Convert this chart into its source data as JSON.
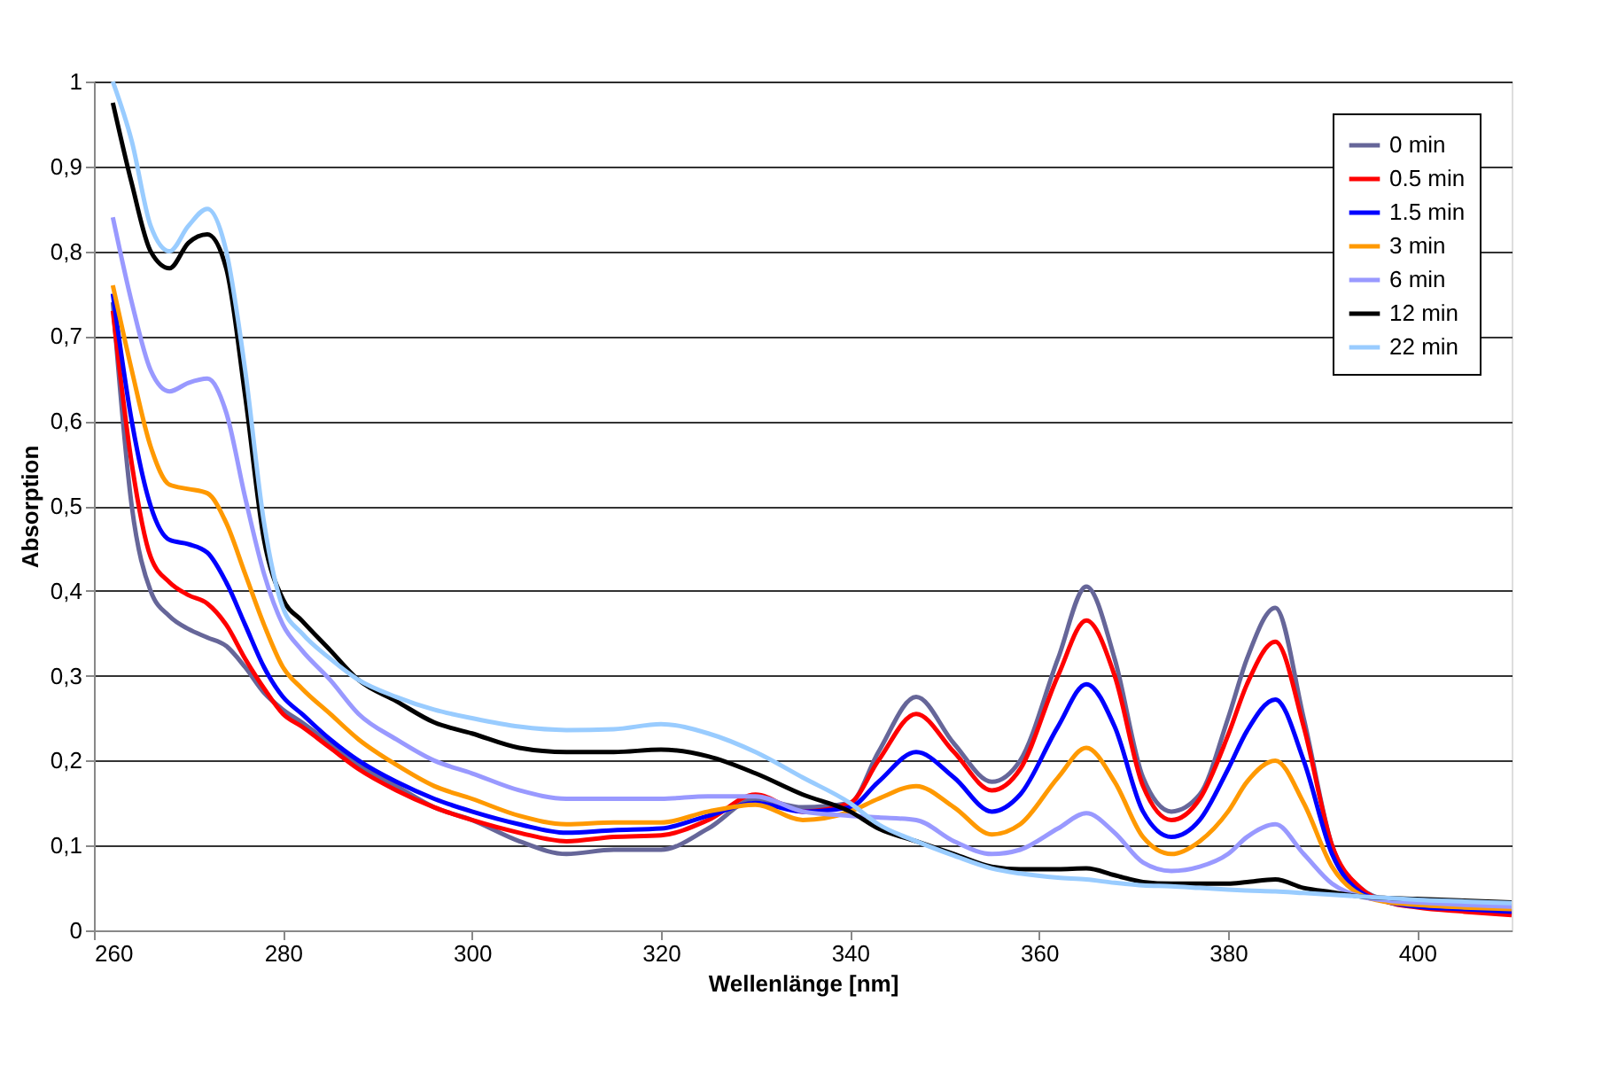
{
  "chart_data": {
    "type": "line",
    "xlabel": "Wellenlänge [nm]",
    "ylabel": "Absorption",
    "xlim": [
      260,
      410
    ],
    "xticks": [
      260,
      280,
      300,
      320,
      340,
      360,
      380,
      400
    ],
    "ylim": [
      0,
      1
    ],
    "yticks": [
      0,
      {
        "value": 0.1,
        "label": "0,1"
      },
      {
        "value": 0.2,
        "label": "0,2"
      },
      {
        "value": 0.3,
        "label": "0,3"
      },
      {
        "value": 0.4,
        "label": "0,4"
      },
      {
        "value": 0.5,
        "label": "0,5"
      },
      {
        "value": 0.6,
        "label": "0,6"
      },
      {
        "value": 0.7,
        "label": "0,7"
      },
      {
        "value": 0.8,
        "label": "0,8"
      },
      {
        "value": 0.9,
        "label": "0,9"
      },
      1
    ],
    "grid": "y",
    "legend": "top right",
    "marker": "none",
    "line_style": "solid",
    "x": [
      262,
      264,
      266,
      268,
      270,
      272,
      274,
      276,
      278,
      280,
      282,
      285,
      288,
      292,
      296,
      300,
      305,
      310,
      315,
      320,
      325,
      330,
      335,
      340,
      343,
      347,
      351,
      355,
      358,
      362,
      365,
      368,
      371,
      374,
      377,
      380,
      382,
      385,
      388,
      391,
      394,
      397,
      400,
      405,
      410
    ],
    "series": [
      {
        "name": "0 min",
        "color": "#666699",
        "values": [
          0.74,
          0.5,
          0.4,
          0.37,
          0.355,
          0.345,
          0.335,
          0.31,
          0.28,
          0.26,
          0.245,
          0.22,
          0.195,
          0.17,
          0.145,
          0.13,
          0.105,
          0.09,
          0.095,
          0.095,
          0.12,
          0.155,
          0.145,
          0.15,
          0.21,
          0.275,
          0.22,
          0.175,
          0.2,
          0.32,
          0.405,
          0.32,
          0.18,
          0.14,
          0.16,
          0.25,
          0.32,
          0.38,
          0.25,
          0.1,
          0.05,
          0.035,
          0.028,
          0.024,
          0.02
        ]
      },
      {
        "name": "0.5 min",
        "color": "#ff0000",
        "values": [
          0.73,
          0.55,
          0.44,
          0.41,
          0.395,
          0.385,
          0.36,
          0.32,
          0.285,
          0.255,
          0.24,
          0.215,
          0.19,
          0.165,
          0.145,
          0.13,
          0.115,
          0.105,
          0.11,
          0.112,
          0.13,
          0.16,
          0.14,
          0.15,
          0.2,
          0.255,
          0.21,
          0.165,
          0.19,
          0.3,
          0.365,
          0.3,
          0.17,
          0.13,
          0.155,
          0.23,
          0.29,
          0.34,
          0.24,
          0.1,
          0.05,
          0.033,
          0.027,
          0.022,
          0.018
        ]
      },
      {
        "name": "1.5 min",
        "color": "#0000ff",
        "values": [
          0.75,
          0.6,
          0.5,
          0.46,
          0.455,
          0.445,
          0.41,
          0.36,
          0.31,
          0.275,
          0.255,
          0.225,
          0.2,
          0.175,
          0.155,
          0.14,
          0.125,
          0.115,
          0.118,
          0.12,
          0.135,
          0.15,
          0.14,
          0.145,
          0.175,
          0.21,
          0.18,
          0.14,
          0.16,
          0.24,
          0.29,
          0.24,
          0.14,
          0.11,
          0.13,
          0.19,
          0.235,
          0.272,
          0.2,
          0.09,
          0.045,
          0.033,
          0.028,
          0.025,
          0.022
        ]
      },
      {
        "name": "3 min",
        "color": "#ff9900",
        "values": [
          0.76,
          0.66,
          0.57,
          0.525,
          0.52,
          0.515,
          0.48,
          0.42,
          0.36,
          0.31,
          0.285,
          0.255,
          0.225,
          0.195,
          0.17,
          0.155,
          0.135,
          0.125,
          0.127,
          0.127,
          0.14,
          0.148,
          0.13,
          0.14,
          0.155,
          0.17,
          0.145,
          0.113,
          0.125,
          0.18,
          0.215,
          0.175,
          0.11,
          0.09,
          0.105,
          0.14,
          0.175,
          0.2,
          0.15,
          0.075,
          0.042,
          0.033,
          0.03,
          0.027,
          0.025
        ]
      },
      {
        "name": "6 min",
        "color": "#9999ff",
        "values": [
          0.84,
          0.74,
          0.66,
          0.635,
          0.645,
          0.65,
          0.61,
          0.51,
          0.42,
          0.36,
          0.33,
          0.295,
          0.255,
          0.225,
          0.2,
          0.185,
          0.165,
          0.155,
          0.155,
          0.155,
          0.158,
          0.158,
          0.14,
          0.135,
          0.133,
          0.13,
          0.105,
          0.09,
          0.095,
          0.12,
          0.138,
          0.115,
          0.08,
          0.07,
          0.075,
          0.09,
          0.11,
          0.125,
          0.09,
          0.055,
          0.04,
          0.035,
          0.033,
          0.03,
          0.028
        ]
      },
      {
        "name": "12 min",
        "color": "#000000",
        "values": [
          0.975,
          0.88,
          0.8,
          0.78,
          0.81,
          0.82,
          0.78,
          0.63,
          0.46,
          0.39,
          0.365,
          0.33,
          0.295,
          0.27,
          0.245,
          0.232,
          0.215,
          0.21,
          0.21,
          0.213,
          0.205,
          0.185,
          0.16,
          0.14,
          0.12,
          0.105,
          0.09,
          0.075,
          0.072,
          0.072,
          0.073,
          0.065,
          0.057,
          0.055,
          0.055,
          0.055,
          0.057,
          0.06,
          0.05,
          0.045,
          0.04,
          0.038,
          0.037,
          0.035,
          0.033
        ]
      },
      {
        "name": "22 min",
        "color": "#99ccff",
        "values": [
          1.0,
          0.93,
          0.83,
          0.8,
          0.83,
          0.85,
          0.8,
          0.66,
          0.48,
          0.38,
          0.35,
          0.32,
          0.295,
          0.275,
          0.26,
          0.25,
          0.24,
          0.236,
          0.237,
          0.243,
          0.232,
          0.21,
          0.18,
          0.15,
          0.125,
          0.105,
          0.088,
          0.073,
          0.067,
          0.062,
          0.06,
          0.056,
          0.053,
          0.052,
          0.05,
          0.048,
          0.047,
          0.046,
          0.044,
          0.042,
          0.04,
          0.038,
          0.036,
          0.034,
          0.032
        ]
      }
    ]
  }
}
